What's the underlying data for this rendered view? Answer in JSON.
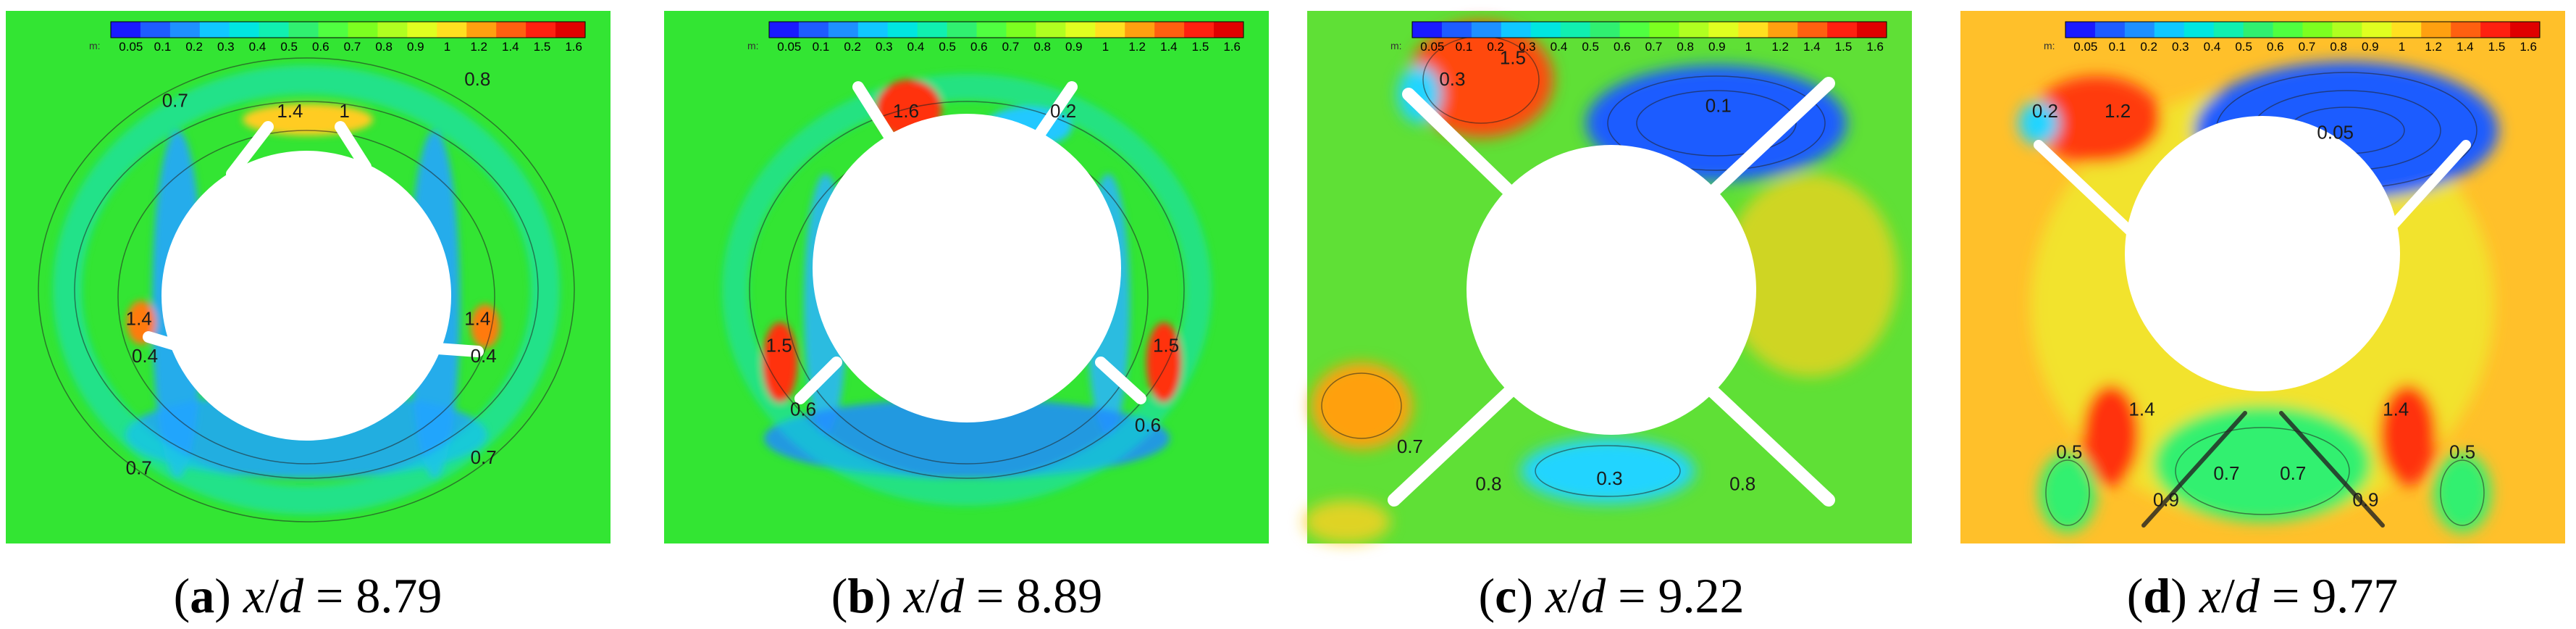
{
  "colorbar": {
    "unit_label": "m:",
    "ticks": [
      "0.05",
      "0.1",
      "0.2",
      "0.3",
      "0.4",
      "0.5",
      "0.6",
      "0.7",
      "0.8",
      "0.9",
      "1",
      "1.2",
      "1.4",
      "1.5",
      "1.6"
    ],
    "colors": [
      "#1a1aff",
      "#1e5cff",
      "#1e90ff",
      "#10c8ff",
      "#00e6e0",
      "#10f0b0",
      "#30f070",
      "#50ff40",
      "#7cff20",
      "#b0ff20",
      "#e0ff20",
      "#ffe020",
      "#ffa010",
      "#ff6010",
      "#ff2010",
      "#e00000"
    ]
  },
  "background_colors": {
    "low": "#1e5cff",
    "mid": "#30e040",
    "high": "#ffb020",
    "peak": "#ff3010"
  },
  "chart_data": [
    {
      "type": "heatmap",
      "panel": "a",
      "x_over_d": 8.79,
      "contour_labels": [
        {
          "text": "0.8",
          "u": 0.78,
          "v": 0.14
        },
        {
          "text": "0.7",
          "u": 0.28,
          "v": 0.18
        },
        {
          "text": "1.4",
          "u": 0.47,
          "v": 0.2
        },
        {
          "text": "1",
          "u": 0.56,
          "v": 0.2
        },
        {
          "text": "1.4",
          "u": 0.22,
          "v": 0.59
        },
        {
          "text": "1.4",
          "u": 0.78,
          "v": 0.59
        },
        {
          "text": "0.4",
          "u": 0.23,
          "v": 0.66
        },
        {
          "text": "0.4",
          "u": 0.79,
          "v": 0.66
        },
        {
          "text": "0.7",
          "u": 0.22,
          "v": 0.87
        },
        {
          "text": "0.7",
          "u": 0.79,
          "v": 0.85
        }
      ]
    },
    {
      "type": "heatmap",
      "panel": "b",
      "x_over_d": 8.89,
      "contour_labels": [
        {
          "text": "1.6",
          "u": 0.4,
          "v": 0.2
        },
        {
          "text": "0.2",
          "u": 0.66,
          "v": 0.2
        },
        {
          "text": "1.5",
          "u": 0.19,
          "v": 0.64
        },
        {
          "text": "1.5",
          "u": 0.83,
          "v": 0.64
        },
        {
          "text": "0.6",
          "u": 0.23,
          "v": 0.76
        },
        {
          "text": "0.6",
          "u": 0.8,
          "v": 0.79
        }
      ]
    },
    {
      "type": "heatmap",
      "panel": "c",
      "x_over_d": 9.22,
      "contour_labels": [
        {
          "text": "1.5",
          "u": 0.34,
          "v": 0.1
        },
        {
          "text": "0.3",
          "u": 0.24,
          "v": 0.14
        },
        {
          "text": "0.1",
          "u": 0.68,
          "v": 0.19
        },
        {
          "text": "0.7",
          "u": 0.17,
          "v": 0.83
        },
        {
          "text": "0.8",
          "u": 0.3,
          "v": 0.9
        },
        {
          "text": "0.3",
          "u": 0.5,
          "v": 0.89
        },
        {
          "text": "0.8",
          "u": 0.72,
          "v": 0.9
        }
      ]
    },
    {
      "type": "heatmap",
      "panel": "d",
      "x_over_d": 9.77,
      "contour_labels": [
        {
          "text": "0.2",
          "u": 0.14,
          "v": 0.2
        },
        {
          "text": "1.2",
          "u": 0.26,
          "v": 0.2
        },
        {
          "text": "0.05",
          "u": 0.62,
          "v": 0.24
        },
        {
          "text": "1.4",
          "u": 0.3,
          "v": 0.76
        },
        {
          "text": "1.4",
          "u": 0.72,
          "v": 0.76
        },
        {
          "text": "0.5",
          "u": 0.18,
          "v": 0.84
        },
        {
          "text": "0.5",
          "u": 0.83,
          "v": 0.84
        },
        {
          "text": "0.7",
          "u": 0.44,
          "v": 0.88
        },
        {
          "text": "0.7",
          "u": 0.55,
          "v": 0.88
        },
        {
          "text": "0.9",
          "u": 0.34,
          "v": 0.93
        },
        {
          "text": "0.9",
          "u": 0.67,
          "v": 0.93
        }
      ]
    }
  ],
  "captions": [
    {
      "letter": "a",
      "prefix": "(",
      "suffix": ")",
      "var": "x",
      "sep": "/",
      "den": "d",
      "eq": " = ",
      "value": "8.79"
    },
    {
      "letter": "b",
      "prefix": "(",
      "suffix": ")",
      "var": "x",
      "sep": "/",
      "den": "d",
      "eq": " = ",
      "value": "8.89"
    },
    {
      "letter": "c",
      "prefix": "(",
      "suffix": ")",
      "var": "x",
      "sep": "/",
      "den": "d",
      "eq": " = ",
      "value": "9.22"
    },
    {
      "letter": "d",
      "prefix": "(",
      "suffix": ")",
      "var": "x",
      "sep": "/",
      "den": "d",
      "eq": " = ",
      "value": "9.77"
    }
  ]
}
